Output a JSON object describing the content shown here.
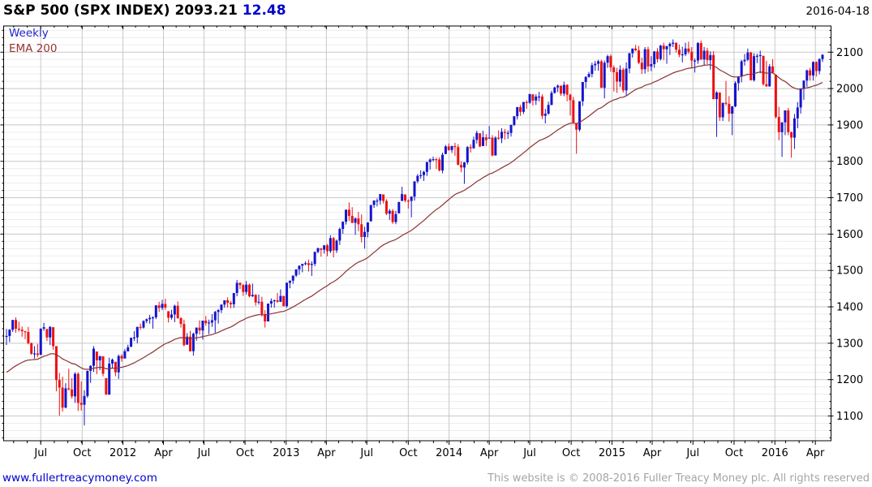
{
  "header": {
    "title": "S&P 500 (SPX INDEX)",
    "last_price": "2093.21",
    "change": "12.48",
    "date": "2016-04-18"
  },
  "legend": {
    "series": "Weekly",
    "overlay": "EMA 200"
  },
  "footer": {
    "website": "www.fullertreacymoney.com",
    "copyright": "This website is © 2008-2016 Fuller Treacy Money plc. All rights reserved"
  },
  "colors": {
    "accent_blue": "#0000cc",
    "legend_weekly": "#2222cc",
    "legend_ema": "#993333",
    "footer_gray": "#a4a4a4"
  },
  "chart_data": {
    "type": "candlestick",
    "title": "S&P 500 (SPX INDEX) weekly candles with 200-day EMA",
    "timeframe": "Weekly",
    "start": "2011-04",
    "end": "2016-04-18",
    "ylim": [
      1032,
      2172
    ],
    "grid": "major 100 / minor 20, quarterly verticals",
    "legend_position": "top-left",
    "colors": {
      "up": "#1414cc",
      "down": "#ee1111",
      "ema": "#8b3232",
      "grid_major": "#c8c8c8",
      "grid_minor": "#ededed",
      "axis": "#000000"
    },
    "y_ticks": [
      1100,
      1200,
      1300,
      1400,
      1500,
      1600,
      1700,
      1800,
      1900,
      2000,
      2100
    ],
    "x_ticks": [
      {
        "label": "Jul",
        "week": 11.0
      },
      {
        "label": "Oct",
        "week": 24.3
      },
      {
        "label": "2012",
        "week": 37.4
      },
      {
        "label": "Apr",
        "week": 50.4
      },
      {
        "label": "Jul",
        "week": 63.4
      },
      {
        "label": "Oct",
        "week": 76.6
      },
      {
        "label": "2013",
        "week": 89.8
      },
      {
        "label": "Apr",
        "week": 102.7
      },
      {
        "label": "Jul",
        "week": 115.7
      },
      {
        "label": "Oct",
        "week": 129.0
      },
      {
        "label": "2014",
        "week": 142.1
      },
      {
        "label": "Apr",
        "week": 155.0
      },
      {
        "label": "Jul",
        "week": 168.0
      },
      {
        "label": "Oct",
        "week": 181.3
      },
      {
        "label": "2015",
        "week": 194.4
      },
      {
        "label": "Apr",
        "week": 207.3
      },
      {
        "label": "Jul",
        "week": 220.4
      },
      {
        "label": "Oct",
        "week": 233.6
      },
      {
        "label": "2016",
        "week": 246.7
      },
      {
        "label": "Apr",
        "week": 259.7
      }
    ],
    "ema": {
      "label": "EMA 200",
      "period_days": 200,
      "alpha": 0.049,
      "seed": 1215
    },
    "candles_format": [
      "high",
      "low",
      "close"
    ],
    "candles": [
      [
        1339,
        1295,
        1320
      ],
      [
        1339,
        1303,
        1337
      ],
      [
        1364,
        1331,
        1364
      ],
      [
        1371,
        1329,
        1340
      ],
      [
        1359,
        1332,
        1337
      ],
      [
        1346,
        1318,
        1333
      ],
      [
        1334,
        1311,
        1331
      ],
      [
        1345,
        1297,
        1300
      ],
      [
        1302,
        1268,
        1271
      ],
      [
        1292,
        1258,
        1272
      ],
      [
        1298,
        1262,
        1268
      ],
      [
        1341,
        1268,
        1340
      ],
      [
        1356,
        1334,
        1344
      ],
      [
        1339,
        1306,
        1316
      ],
      [
        1347,
        1295,
        1345
      ],
      [
        1344,
        1282,
        1292
      ],
      [
        1292,
        1168,
        1199
      ],
      [
        1218,
        1101,
        1178
      ],
      [
        1208,
        1112,
        1123
      ],
      [
        1190,
        1121,
        1176
      ],
      [
        1230,
        1170,
        1173
      ],
      [
        1204,
        1148,
        1154
      ],
      [
        1220,
        1136,
        1216
      ],
      [
        1220,
        1114,
        1136
      ],
      [
        1195,
        1115,
        1131
      ],
      [
        1171,
        1074,
        1155
      ],
      [
        1225,
        1150,
        1224
      ],
      [
        1239,
        1191,
        1238
      ],
      [
        1292,
        1221,
        1285
      ],
      [
        1277,
        1215,
        1253
      ],
      [
        1266,
        1226,
        1264
      ],
      [
        1264,
        1209,
        1216
      ],
      [
        1204,
        1158,
        1159
      ],
      [
        1260,
        1158,
        1244
      ],
      [
        1258,
        1231,
        1255
      ],
      [
        1249,
        1209,
        1220
      ],
      [
        1269,
        1202,
        1265
      ],
      [
        1270,
        1249,
        1258
      ],
      [
        1284,
        1258,
        1278
      ],
      [
        1296,
        1277,
        1289
      ],
      [
        1315,
        1290,
        1315
      ],
      [
        1333,
        1306,
        1316
      ],
      [
        1345,
        1300,
        1345
      ],
      [
        1354,
        1337,
        1343
      ],
      [
        1363,
        1340,
        1361
      ],
      [
        1368,
        1355,
        1366
      ],
      [
        1378,
        1354,
        1370
      ],
      [
        1374,
        1340,
        1371
      ],
      [
        1405,
        1366,
        1404
      ],
      [
        1414,
        1386,
        1397
      ],
      [
        1419,
        1391,
        1408
      ],
      [
        1422,
        1392,
        1398
      ],
      [
        1388,
        1357,
        1370
      ],
      [
        1392,
        1365,
        1379
      ],
      [
        1406,
        1358,
        1403
      ],
      [
        1415,
        1367,
        1369
      ],
      [
        1372,
        1343,
        1353
      ],
      [
        1365,
        1291,
        1295
      ],
      [
        1328,
        1296,
        1318
      ],
      [
        1334,
        1277,
        1278
      ],
      [
        1329,
        1266,
        1326
      ],
      [
        1343,
        1307,
        1343
      ],
      [
        1363,
        1324,
        1335
      ],
      [
        1362,
        1310,
        1362
      ],
      [
        1375,
        1348,
        1355
      ],
      [
        1365,
        1325,
        1357
      ],
      [
        1380,
        1345,
        1363
      ],
      [
        1389,
        1329,
        1386
      ],
      [
        1394,
        1354,
        1391
      ],
      [
        1407,
        1383,
        1406
      ],
      [
        1418,
        1398,
        1418
      ],
      [
        1426,
        1398,
        1411
      ],
      [
        1416,
        1396,
        1407
      ],
      [
        1438,
        1397,
        1438
      ],
      [
        1474,
        1429,
        1466
      ],
      [
        1467,
        1449,
        1460
      ],
      [
        1463,
        1430,
        1441
      ],
      [
        1471,
        1434,
        1461
      ],
      [
        1464,
        1426,
        1429
      ],
      [
        1464,
        1427,
        1433
      ],
      [
        1435,
        1403,
        1412
      ],
      [
        1434,
        1406,
        1414
      ],
      [
        1428,
        1373,
        1380
      ],
      [
        1391,
        1343,
        1360
      ],
      [
        1409,
        1360,
        1409
      ],
      [
        1423,
        1398,
        1416
      ],
      [
        1420,
        1398,
        1418
      ],
      [
        1438,
        1411,
        1414
      ],
      [
        1448,
        1413,
        1430
      ],
      [
        1430,
        1401,
        1402
      ],
      [
        1467,
        1398,
        1466
      ],
      [
        1472,
        1451,
        1472
      ],
      [
        1486,
        1463,
        1486
      ],
      [
        1503,
        1482,
        1503
      ],
      [
        1514,
        1488,
        1513
      ],
      [
        1518,
        1495,
        1518
      ],
      [
        1525,
        1514,
        1520
      ],
      [
        1530,
        1497,
        1515
      ],
      [
        1525,
        1485,
        1518
      ],
      [
        1552,
        1512,
        1551
      ],
      [
        1563,
        1547,
        1561
      ],
      [
        1561,
        1538,
        1557
      ],
      [
        1570,
        1546,
        1569
      ],
      [
        1573,
        1539,
        1553
      ],
      [
        1597,
        1548,
        1589
      ],
      [
        1592,
        1536,
        1555
      ],
      [
        1585,
        1548,
        1582
      ],
      [
        1618,
        1570,
        1614
      ],
      [
        1635,
        1601,
        1634
      ],
      [
        1667,
        1626,
        1667
      ],
      [
        1687,
        1636,
        1650
      ],
      [
        1674,
        1630,
        1631
      ],
      [
        1646,
        1598,
        1643
      ],
      [
        1661,
        1608,
        1627
      ],
      [
        1654,
        1577,
        1592
      ],
      [
        1620,
        1560,
        1606
      ],
      [
        1632,
        1591,
        1632
      ],
      [
        1680,
        1635,
        1680
      ],
      [
        1693,
        1672,
        1692
      ],
      [
        1698,
        1676,
        1692
      ],
      [
        1710,
        1681,
        1710
      ],
      [
        1709,
        1684,
        1691
      ],
      [
        1696,
        1652,
        1656
      ],
      [
        1669,
        1639,
        1664
      ],
      [
        1669,
        1628,
        1633
      ],
      [
        1664,
        1627,
        1655
      ],
      [
        1689,
        1657,
        1688
      ],
      [
        1730,
        1691,
        1710
      ],
      [
        1709,
        1687,
        1692
      ],
      [
        1696,
        1670,
        1691
      ],
      [
        1703,
        1646,
        1703
      ],
      [
        1745,
        1692,
        1745
      ],
      [
        1765,
        1740,
        1760
      ],
      [
        1775,
        1752,
        1762
      ],
      [
        1774,
        1746,
        1771
      ],
      [
        1798,
        1760,
        1798
      ],
      [
        1808,
        1777,
        1805
      ],
      [
        1813,
        1800,
        1806
      ],
      [
        1810,
        1779,
        1805
      ],
      [
        1811,
        1772,
        1775
      ],
      [
        1824,
        1767,
        1818
      ],
      [
        1845,
        1820,
        1841
      ],
      [
        1849,
        1829,
        1831
      ],
      [
        1843,
        1823,
        1842
      ],
      [
        1851,
        1815,
        1839
      ],
      [
        1847,
        1790,
        1790
      ],
      [
        1799,
        1770,
        1783
      ],
      [
        1798,
        1738,
        1797
      ],
      [
        1842,
        1791,
        1839
      ],
      [
        1847,
        1824,
        1836
      ],
      [
        1868,
        1834,
        1859
      ],
      [
        1884,
        1849,
        1878
      ],
      [
        1877,
        1839,
        1841
      ],
      [
        1884,
        1842,
        1866
      ],
      [
        1875,
        1842,
        1858
      ],
      [
        1897,
        1863,
        1865
      ],
      [
        1872,
        1814,
        1816
      ],
      [
        1869,
        1816,
        1865
      ],
      [
        1885,
        1859,
        1863
      ],
      [
        1891,
        1850,
        1881
      ],
      [
        1889,
        1860,
        1878
      ],
      [
        1885,
        1862,
        1878
      ],
      [
        1901,
        1868,
        1900
      ],
      [
        1924,
        1897,
        1924
      ],
      [
        1949,
        1915,
        1949
      ],
      [
        1955,
        1925,
        1936
      ],
      [
        1963,
        1930,
        1963
      ],
      [
        1968,
        1944,
        1961
      ],
      [
        1985,
        1958,
        1985
      ],
      [
        1984,
        1953,
        1967
      ],
      [
        1984,
        1955,
        1978
      ],
      [
        1991,
        1965,
        1978
      ],
      [
        1984,
        1916,
        1925
      ],
      [
        1944,
        1904,
        1931
      ],
      [
        1964,
        1928,
        1955
      ],
      [
        1994,
        1954,
        1988
      ],
      [
        2005,
        1986,
        2003
      ],
      [
        2011,
        1990,
        2008
      ],
      [
        2008,
        1980,
        1986
      ],
      [
        2019,
        1979,
        2010
      ],
      [
        2012,
        1965,
        1983
      ],
      [
        1986,
        1926,
        1968
      ],
      [
        1977,
        1906,
        1906
      ],
      [
        1905,
        1821,
        1887
      ],
      [
        1965,
        1882,
        1965
      ],
      [
        2018,
        1952,
        2018
      ],
      [
        2034,
        2001,
        2032
      ],
      [
        2046,
        2030,
        2040
      ],
      [
        2071,
        2031,
        2064
      ],
      [
        2076,
        2049,
        2068
      ],
      [
        2079,
        2049,
        2075
      ],
      [
        2079,
        2002,
        2002
      ],
      [
        2077,
        1973,
        2071
      ],
      [
        2093,
        2057,
        2089
      ],
      [
        2094,
        2046,
        2058
      ],
      [
        2064,
        1992,
        2045
      ],
      [
        2057,
        1988,
        2019
      ],
      [
        2064,
        2004,
        2052
      ],
      [
        2057,
        1989,
        1995
      ],
      [
        2072,
        1981,
        2055
      ],
      [
        2098,
        2042,
        2097
      ],
      [
        2110,
        2085,
        2110
      ],
      [
        2120,
        2103,
        2105
      ],
      [
        2117,
        2067,
        2071
      ],
      [
        2085,
        2040,
        2053
      ],
      [
        2114,
        2041,
        2108
      ],
      [
        2115,
        2046,
        2061
      ],
      [
        2089,
        2048,
        2067
      ],
      [
        2103,
        2057,
        2102
      ],
      [
        2111,
        2072,
        2081
      ],
      [
        2120,
        2077,
        2118
      ],
      [
        2126,
        2078,
        2108
      ],
      [
        2118,
        2068,
        2116
      ],
      [
        2127,
        2092,
        2123
      ],
      [
        2135,
        2114,
        2126
      ],
      [
        2126,
        2099,
        2107
      ],
      [
        2121,
        2086,
        2093
      ],
      [
        2115,
        2072,
        2094
      ],
      [
        2126,
        2089,
        2110
      ],
      [
        2129,
        2095,
        2101
      ],
      [
        2114,
        2056,
        2077
      ],
      [
        2083,
        2044,
        2077
      ],
      [
        2128,
        2068,
        2125
      ],
      [
        2132,
        2078,
        2080
      ],
      [
        2114,
        2063,
        2104
      ],
      [
        2112,
        2067,
        2078
      ],
      [
        2102,
        2052,
        2092
      ],
      [
        2103,
        1971,
        1971
      ],
      [
        1993,
        1867,
        1989
      ],
      [
        1990,
        1911,
        1921
      ],
      [
        1961,
        1911,
        1961
      ],
      [
        2021,
        1953,
        1958
      ],
      [
        1979,
        1909,
        1931
      ],
      [
        1952,
        1872,
        1951
      ],
      [
        2020,
        1949,
        2015
      ],
      [
        2034,
        1994,
        2033
      ],
      [
        2079,
        2017,
        2075
      ],
      [
        2095,
        2063,
        2079
      ],
      [
        2110,
        2075,
        2099
      ],
      [
        2101,
        2022,
        2023
      ],
      [
        2097,
        2019,
        2089
      ],
      [
        2096,
        2070,
        2090
      ],
      [
        2104,
        2042,
        2092
      ],
      [
        2090,
        2008,
        2012
      ],
      [
        2076,
        2005,
        2006
      ],
      [
        2067,
        2005,
        2061
      ],
      [
        2081,
        2043,
        2044
      ],
      [
        2038,
        1918,
        1922
      ],
      [
        1950,
        1858,
        1880
      ],
      [
        1908,
        1812,
        1907
      ],
      [
        1940,
        1872,
        1940
      ],
      [
        1947,
        1872,
        1880
      ],
      [
        1882,
        1810,
        1865
      ],
      [
        1930,
        1834,
        1918
      ],
      [
        1963,
        1891,
        1948
      ],
      [
        2001,
        1931,
        2000
      ],
      [
        2022,
        1969,
        2022
      ],
      [
        2052,
        2005,
        2050
      ],
      [
        2057,
        2022,
        2036
      ],
      [
        2075,
        2022,
        2073
      ],
      [
        2075,
        2033,
        2048
      ],
      [
        2083,
        2039,
        2081
      ],
      [
        2094,
        2073,
        2093
      ]
    ]
  }
}
